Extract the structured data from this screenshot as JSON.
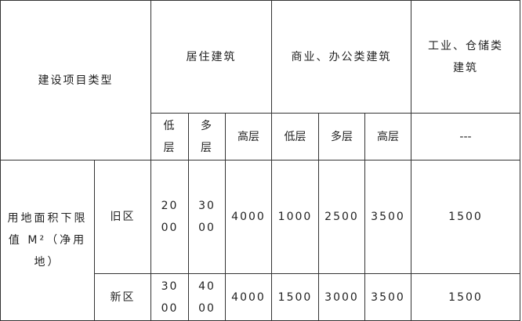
{
  "table": {
    "corner_header": "建设项目类型",
    "group_headers": [
      "居住建筑",
      "商业、办公类建筑",
      "工业、仓储类建筑"
    ],
    "sub_headers": [
      "低层",
      "多层",
      "高层",
      "低层",
      "多层",
      "高层",
      "---"
    ],
    "row_label": "用地面积下限值 M²（净用地）",
    "rows": [
      {
        "area": "旧区",
        "values": [
          "2000",
          "3000",
          "4000",
          "1000",
          "2500",
          "3500",
          "1500"
        ]
      },
      {
        "area": "新区",
        "values": [
          "3000",
          "4000",
          "4000",
          "1500",
          "3000",
          "3500",
          "1500"
        ]
      }
    ]
  }
}
